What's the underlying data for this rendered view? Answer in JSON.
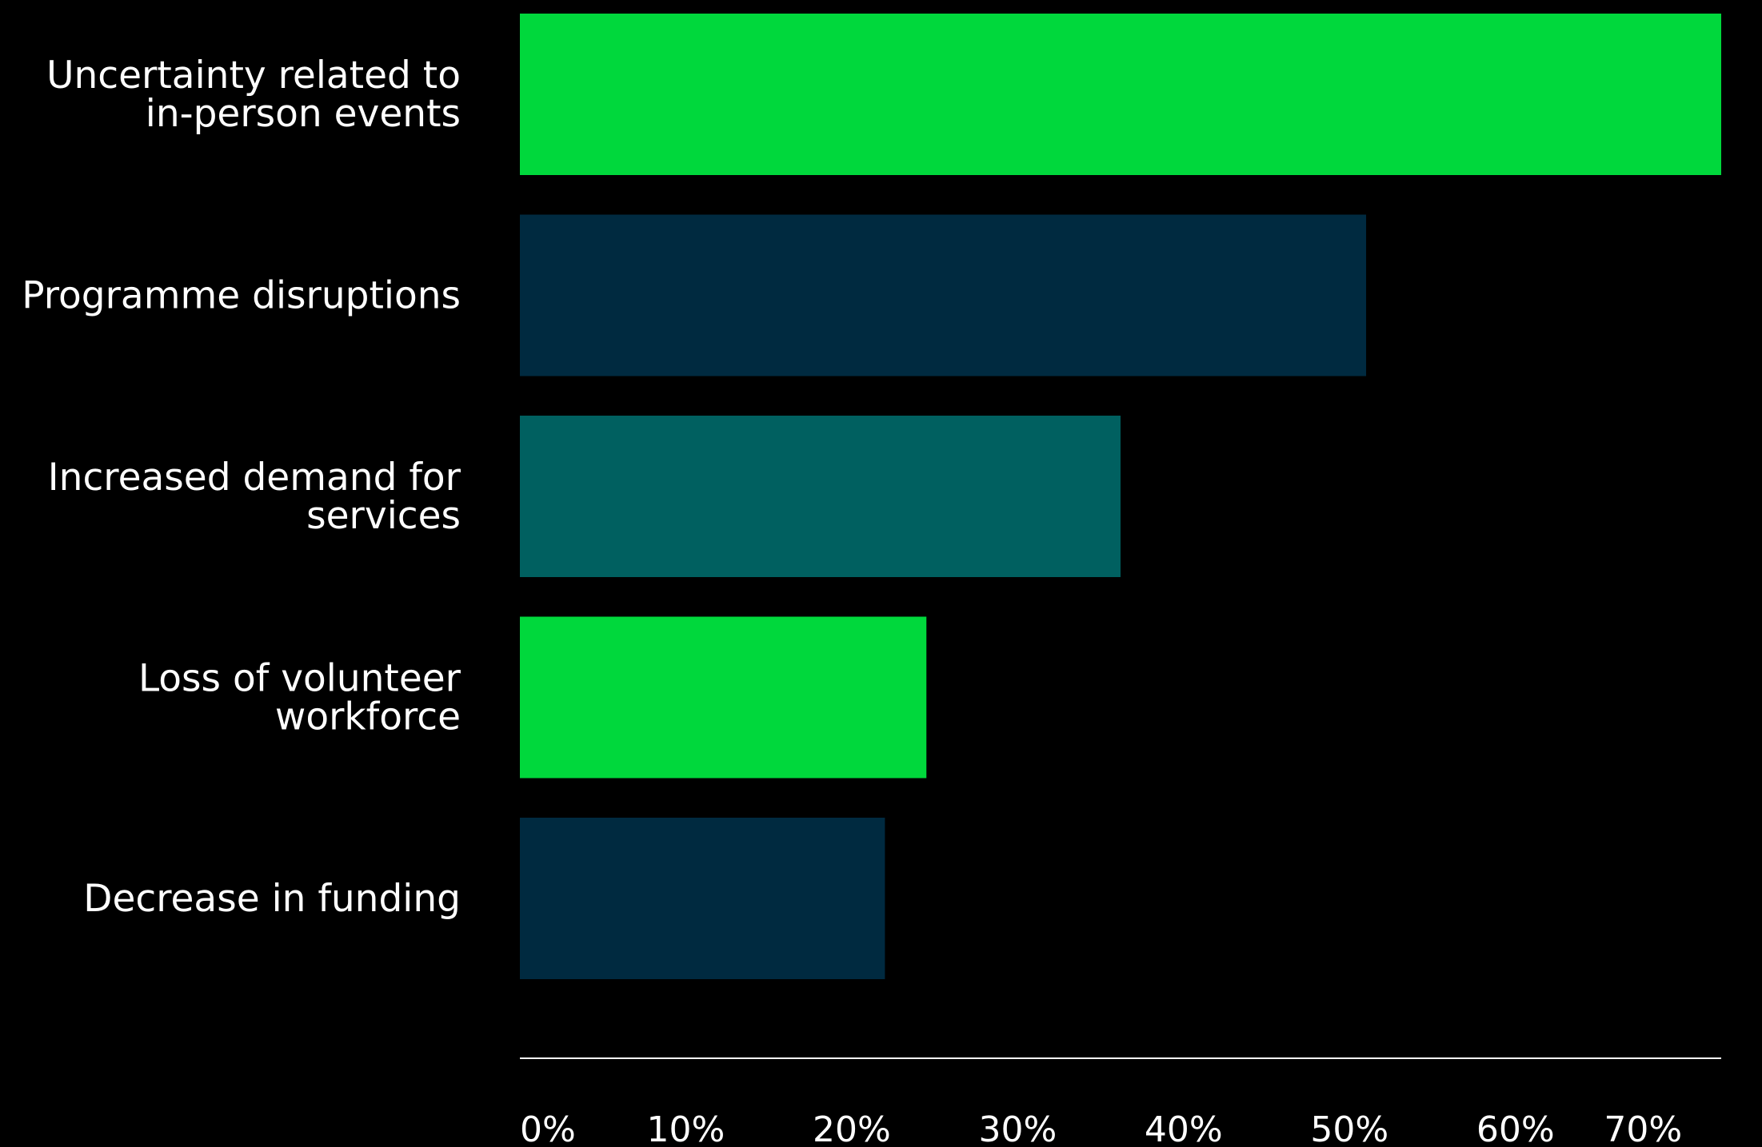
{
  "chart_data": {
    "type": "bar",
    "orientation": "horizontal",
    "categories": [
      [
        "Uncertainty related to",
        "in-person events"
      ],
      [
        "Programme disruptions"
      ],
      [
        "Increased demand for",
        "services"
      ],
      [
        "Loss of volunteer",
        "workforce"
      ],
      [
        "Decrease in funding"
      ]
    ],
    "values": [
      72.4,
      51.0,
      36.2,
      24.5,
      22.0
    ],
    "colors": [
      "#00d83c",
      "#002a40",
      "#006060",
      "#00d83c",
      "#002a40"
    ],
    "xlim": [
      0,
      72.4
    ],
    "xticks": [
      0,
      10,
      20,
      30,
      40,
      50,
      60,
      70
    ],
    "xtick_labels": [
      "0%",
      "10%",
      "20%",
      "30%",
      "40%",
      "50%",
      "60%",
      "70%"
    ],
    "title": "",
    "xlabel": "",
    "ylabel": "",
    "grid": false,
    "legend": "none"
  }
}
